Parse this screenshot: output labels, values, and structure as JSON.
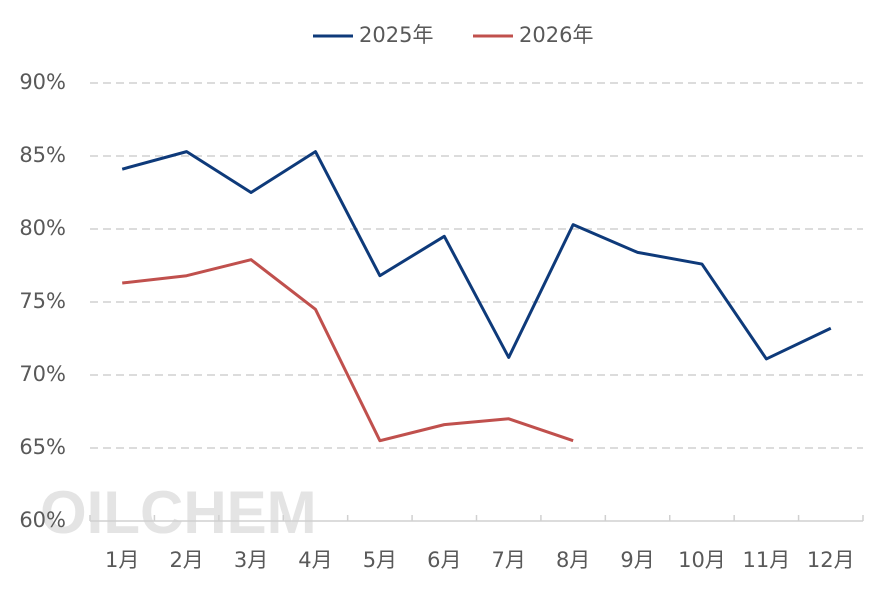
{
  "chart_data": {
    "type": "line",
    "categories": [
      "1月",
      "2月",
      "3月",
      "4月",
      "5月",
      "6月",
      "7月",
      "8月",
      "9月",
      "10月",
      "11月",
      "12月"
    ],
    "series": [
      {
        "name": "2025年",
        "color": "#0e3a7a",
        "values": [
          84.1,
          85.3,
          82.5,
          85.3,
          76.8,
          79.5,
          71.2,
          80.3,
          78.4,
          77.6,
          71.1,
          73.2
        ]
      },
      {
        "name": "2026年",
        "color": "#c0504d",
        "values": [
          76.3,
          76.8,
          77.9,
          74.5,
          65.5,
          66.6,
          67.0,
          65.5,
          null,
          null,
          null,
          null
        ]
      }
    ],
    "ylim": [
      60,
      90
    ],
    "yticks": [
      {
        "value": 60,
        "label": "60%"
      },
      {
        "value": 65,
        "label": "65%"
      },
      {
        "value": 70,
        "label": "70%"
      },
      {
        "value": 75,
        "label": "75%"
      },
      {
        "value": 80,
        "label": "80%"
      },
      {
        "value": 85,
        "label": "85%"
      },
      {
        "value": 90,
        "label": "90%"
      }
    ],
    "grid": true,
    "legend": "top",
    "watermark": "OILCHEM"
  }
}
